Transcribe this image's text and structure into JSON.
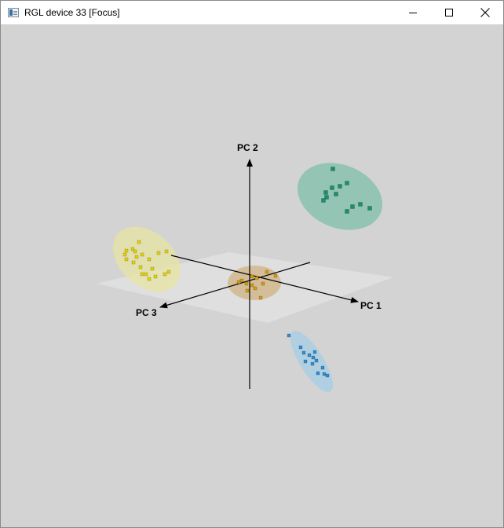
{
  "window": {
    "title": "RGL device 33 [Focus]",
    "controls": {
      "minimize_icon": "minimize-icon",
      "maximize_icon": "maximize-icon",
      "close_icon": "close-icon"
    }
  },
  "scene": {
    "background": "#d3d3d3",
    "axes": {
      "x_label": "PC 1",
      "y_label": "PC 2",
      "z_label": "PC 3"
    },
    "groups": [
      {
        "color": "#1a8f6e",
        "ellipse_color": "#7fbfa8"
      },
      {
        "color": "#e6d400",
        "ellipse_color": "#e7e3a6"
      },
      {
        "color": "#d99a0a",
        "ellipse_color": "#d2b88e"
      },
      {
        "color": "#2e8fd6",
        "ellipse_color": "#a7cfe6"
      }
    ]
  }
}
